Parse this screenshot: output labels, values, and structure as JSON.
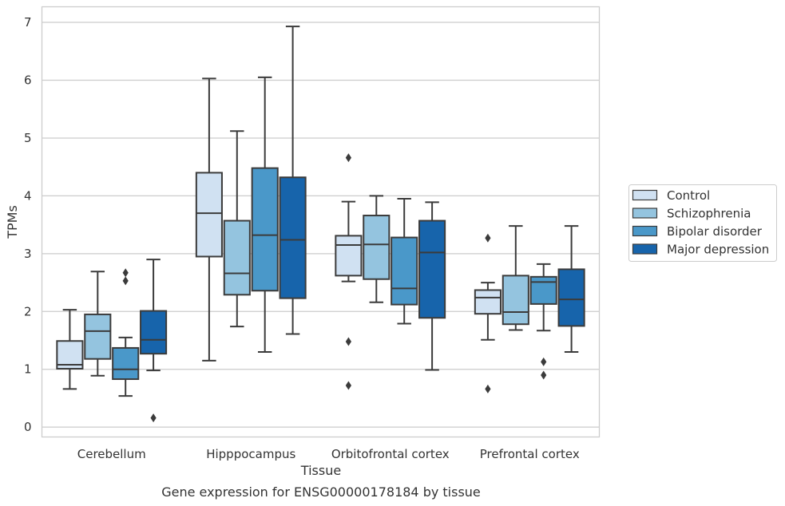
{
  "chart_data": {
    "type": "box",
    "title": "",
    "caption": "Gene expression for ENSG00000178184 by tissue",
    "xlabel": "Tissue",
    "ylabel": "TPMs",
    "ylim": [
      -0.17,
      7.27
    ],
    "yticks": [
      0,
      1,
      2,
      3,
      4,
      5,
      6,
      7
    ],
    "grid": "horizontal",
    "legend_position": "right",
    "categories": [
      "Cerebellum",
      "Hipppocampus",
      "Orbitofrontal cortex",
      "Prefrontal cortex"
    ],
    "series": [
      {
        "name": "Control",
        "color": "#d0e1f2",
        "boxes": [
          {
            "whislo": 0.66,
            "q1": 1.01,
            "med": 1.08,
            "q3": 1.49,
            "whishi": 2.03,
            "fliers": []
          },
          {
            "whislo": 1.15,
            "q1": 2.95,
            "med": 3.7,
            "q3": 4.4,
            "whishi": 6.03,
            "fliers": []
          },
          {
            "whislo": 2.52,
            "q1": 2.62,
            "med": 3.15,
            "q3": 3.31,
            "whishi": 3.9,
            "fliers": [
              4.66,
              1.48,
              0.72
            ]
          },
          {
            "whislo": 1.51,
            "q1": 1.96,
            "med": 2.24,
            "q3": 2.37,
            "whishi": 2.5,
            "fliers": [
              3.27,
              0.66
            ]
          }
        ]
      },
      {
        "name": "Schizophrenia",
        "color": "#94c4df",
        "boxes": [
          {
            "whislo": 0.89,
            "q1": 1.18,
            "med": 1.66,
            "q3": 1.95,
            "whishi": 2.69,
            "fliers": []
          },
          {
            "whislo": 1.74,
            "q1": 2.29,
            "med": 2.66,
            "q3": 3.57,
            "whishi": 5.12,
            "fliers": []
          },
          {
            "whislo": 2.16,
            "q1": 2.56,
            "med": 3.16,
            "q3": 3.66,
            "whishi": 4.0,
            "fliers": []
          },
          {
            "whislo": 1.68,
            "q1": 1.78,
            "med": 1.99,
            "q3": 2.62,
            "whishi": 3.48,
            "fliers": []
          }
        ]
      },
      {
        "name": "Bipolar disorder",
        "color": "#4a98c9",
        "boxes": [
          {
            "whislo": 0.54,
            "q1": 0.83,
            "med": 1.0,
            "q3": 1.37,
            "whishi": 1.55,
            "fliers": [
              2.67,
              2.53
            ]
          },
          {
            "whislo": 1.3,
            "q1": 2.36,
            "med": 3.32,
            "q3": 4.48,
            "whishi": 6.05,
            "fliers": []
          },
          {
            "whislo": 1.79,
            "q1": 2.12,
            "med": 2.4,
            "q3": 3.28,
            "whishi": 3.95,
            "fliers": []
          },
          {
            "whislo": 1.67,
            "q1": 2.13,
            "med": 2.51,
            "q3": 2.6,
            "whishi": 2.82,
            "fliers": [
              1.13,
              0.9
            ]
          }
        ]
      },
      {
        "name": "Major depression",
        "color": "#1764ab",
        "boxes": [
          {
            "whislo": 0.98,
            "q1": 1.27,
            "med": 1.51,
            "q3": 2.01,
            "whishi": 2.9,
            "fliers": [
              0.16
            ]
          },
          {
            "whislo": 1.61,
            "q1": 2.23,
            "med": 3.24,
            "q3": 4.32,
            "whishi": 6.93,
            "fliers": []
          },
          {
            "whislo": 0.99,
            "q1": 1.89,
            "med": 3.02,
            "q3": 3.57,
            "whishi": 3.89,
            "fliers": []
          },
          {
            "whislo": 1.3,
            "q1": 1.75,
            "med": 2.21,
            "q3": 2.73,
            "whishi": 3.48,
            "fliers": []
          }
        ]
      }
    ]
  }
}
